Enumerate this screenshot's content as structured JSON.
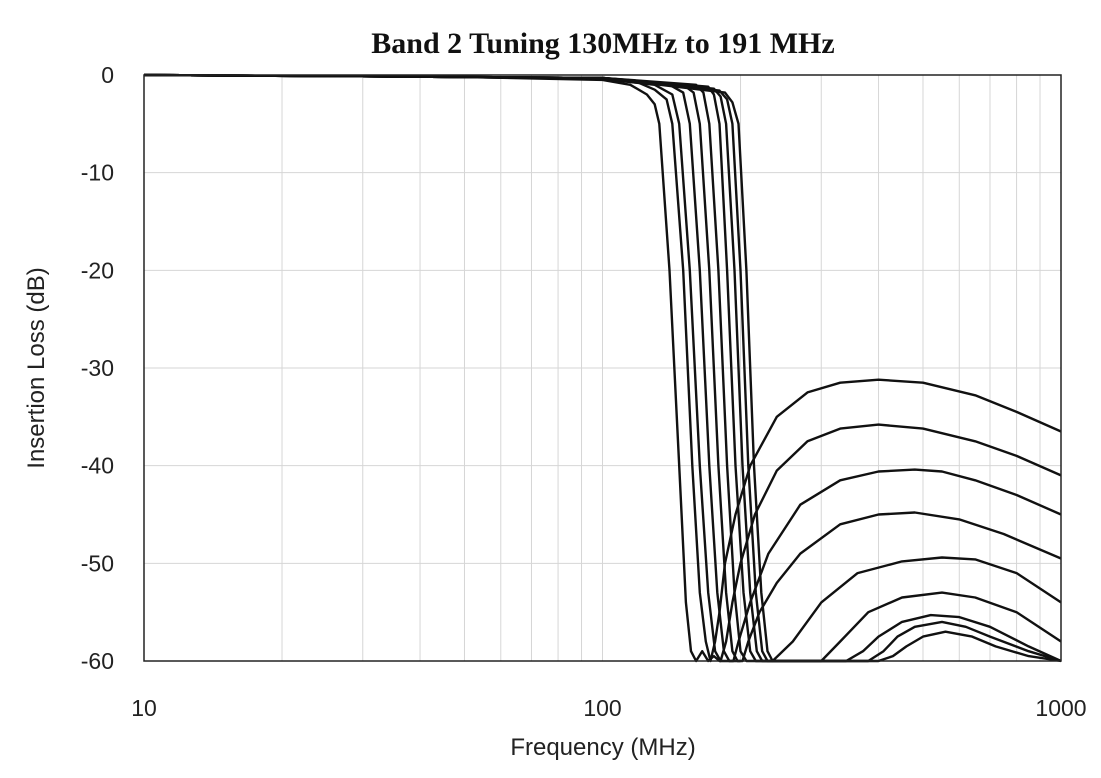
{
  "chart_data": {
    "type": "line",
    "title": "Band 2 Tuning 130MHz to 191 MHz",
    "xlabel": "Frequency (MHz)",
    "ylabel": "Insertion Loss (dB)",
    "x_scale": "log",
    "xlim": [
      10,
      1000
    ],
    "ylim": [
      -60,
      0
    ],
    "x_ticks": [
      {
        "value": 10,
        "label": "10"
      },
      {
        "value": 100,
        "label": "100"
      },
      {
        "value": 1000,
        "label": "1000"
      }
    ],
    "y_ticks": [
      {
        "value": 0,
        "label": "0"
      },
      {
        "value": -10,
        "label": "-10"
      },
      {
        "value": -20,
        "label": "-20"
      },
      {
        "value": -30,
        "label": "-30"
      },
      {
        "value": -40,
        "label": "-40"
      },
      {
        "value": -50,
        "label": "-50"
      },
      {
        "value": -60,
        "label": "-60"
      }
    ],
    "grid": true,
    "series": [
      {
        "x": [
          10,
          50,
          100,
          115,
          125,
          130,
          133,
          140,
          147,
          152,
          156,
          160,
          165,
          170,
          175,
          180,
          190,
          200
        ],
        "y": [
          0,
          -0.2,
          -0.5,
          -1.0,
          -2.0,
          -3.0,
          -5.0,
          -20.0,
          -40.0,
          -54.0,
          -59.0,
          -60.0,
          -59.0,
          -60.0,
          -59.5,
          -60.0,
          -60.0,
          -60.0
        ]
      },
      {
        "x": [
          10,
          50,
          100,
          120,
          130,
          138,
          142,
          150,
          157,
          163,
          168,
          172,
          176,
          180,
          185,
          195,
          210,
          240,
          280,
          330,
          400,
          500,
          650,
          800,
          1000
        ],
        "y": [
          0,
          -0.2,
          -0.4,
          -0.8,
          -1.5,
          -2.5,
          -5.0,
          -20.0,
          -40.0,
          -53.0,
          -58.0,
          -60.0,
          -58.0,
          -55.0,
          -50.0,
          -45.0,
          -40.0,
          -35.0,
          -32.5,
          -31.5,
          -31.2,
          -31.5,
          -32.8,
          -34.5,
          -36.5
        ]
      },
      {
        "x": [
          10,
          50,
          100,
          130,
          142,
          147,
          155,
          163,
          170,
          176,
          181,
          186,
          192,
          200,
          215,
          240,
          280,
          330,
          400,
          500,
          650,
          800,
          1000
        ],
        "y": [
          0,
          -0.2,
          -0.4,
          -1.0,
          -2.0,
          -5.0,
          -20.0,
          -40.0,
          -53.0,
          -59.0,
          -60.0,
          -58.0,
          -54.0,
          -50.0,
          -45.0,
          -40.5,
          -37.5,
          -36.2,
          -35.8,
          -36.2,
          -37.5,
          -39.0,
          -41.0
        ]
      },
      {
        "x": [
          10,
          50,
          100,
          140,
          150,
          155,
          163,
          171,
          178,
          184,
          189,
          193,
          198,
          210,
          230,
          270,
          330,
          400,
          480,
          550,
          650,
          800,
          1000
        ],
        "y": [
          0,
          -0.2,
          -0.3,
          -1.0,
          -1.8,
          -5.0,
          -20.0,
          -40.0,
          -53.0,
          -59.0,
          -60.0,
          -60.0,
          -58.0,
          -54.0,
          -49.0,
          -44.0,
          -41.5,
          -40.6,
          -40.4,
          -40.6,
          -41.5,
          -43.0,
          -45.0
        ]
      },
      {
        "x": [
          10,
          50,
          100,
          150,
          158,
          163,
          171,
          179,
          186,
          192,
          197,
          202,
          208,
          220,
          240,
          270,
          330,
          400,
          480,
          600,
          750,
          1000
        ],
        "y": [
          0,
          -0.2,
          -0.3,
          -1.0,
          -1.8,
          -5.0,
          -20.0,
          -40.0,
          -53.0,
          -59.0,
          -60.0,
          -60.0,
          -58.0,
          -55.0,
          -52.0,
          -49.0,
          -46.0,
          -45.0,
          -44.8,
          -45.5,
          -47.0,
          -49.5
        ]
      },
      {
        "x": [
          10,
          50,
          100,
          160,
          166,
          171,
          179,
          187,
          194,
          200,
          206,
          212,
          220,
          235,
          260,
          300,
          360,
          450,
          550,
          650,
          800,
          1000
        ],
        "y": [
          0,
          -0.2,
          -0.3,
          -1.0,
          -1.8,
          -5.0,
          -20.0,
          -40.0,
          -53.0,
          -59.0,
          -60.0,
          -60.0,
          -60.0,
          -60.0,
          -58.0,
          -54.0,
          -51.0,
          -49.8,
          -49.4,
          -49.6,
          -51.0,
          -54.0
        ]
      },
      {
        "x": [
          10,
          50,
          100,
          170,
          175,
          180,
          187,
          195,
          203,
          210,
          216,
          222,
          230,
          260,
          300,
          330,
          380,
          450,
          550,
          650,
          800,
          1000
        ],
        "y": [
          0,
          -0.2,
          -0.3,
          -1.2,
          -2.0,
          -5.0,
          -20.0,
          -40.0,
          -53.0,
          -59.0,
          -60.0,
          -60.0,
          -60.0,
          -60.0,
          -60.0,
          -58.0,
          -55.0,
          -53.5,
          -53.0,
          -53.5,
          -55.0,
          -58.0
        ]
      },
      {
        "x": [
          10,
          50,
          100,
          175,
          181,
          186,
          194,
          202,
          210,
          217,
          223,
          230,
          300,
          340,
          370,
          400,
          450,
          520,
          600,
          700,
          850,
          1000
        ],
        "y": [
          0,
          -0.2,
          -0.3,
          -1.4,
          -2.2,
          -5.0,
          -20.0,
          -40.0,
          -53.0,
          -59.0,
          -60.0,
          -60.0,
          -60.0,
          -60.0,
          -59.0,
          -57.5,
          -56.0,
          -55.3,
          -55.5,
          -56.5,
          -58.5,
          -60.0
        ]
      },
      {
        "x": [
          10,
          50,
          100,
          180,
          187,
          192,
          200,
          208,
          216,
          223,
          229,
          235,
          320,
          380,
          410,
          440,
          480,
          550,
          620,
          700,
          850,
          1000
        ],
        "y": [
          0,
          -0.2,
          -0.3,
          -1.6,
          -2.5,
          -5.0,
          -20.0,
          -40.0,
          -53.0,
          -59.0,
          -60.0,
          -60.0,
          -60.0,
          -60.0,
          -59.0,
          -57.5,
          -56.5,
          -56.0,
          -56.5,
          -57.5,
          -59.0,
          -60.0
        ]
      },
      {
        "x": [
          10,
          50,
          100,
          185,
          192,
          198,
          206,
          214,
          222,
          229,
          235,
          240,
          350,
          400,
          430,
          460,
          500,
          560,
          640,
          720,
          850,
          1000
        ],
        "y": [
          0,
          -0.2,
          -0.3,
          -1.8,
          -2.8,
          -5.0,
          -20.0,
          -40.0,
          -53.0,
          -59.0,
          -60.0,
          -60.0,
          -60.0,
          -60.0,
          -59.5,
          -58.5,
          -57.5,
          -57.0,
          -57.5,
          -58.5,
          -59.5,
          -60.0
        ]
      }
    ]
  }
}
